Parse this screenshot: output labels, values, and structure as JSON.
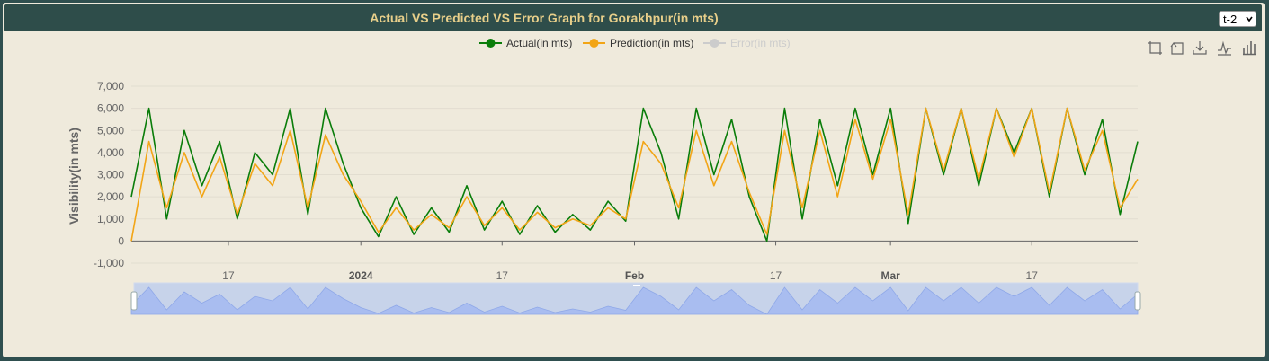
{
  "header": {
    "title": "Actual VS Predicted VS Error Graph for Gorakhpur(in mts)",
    "select_value": "t-2"
  },
  "toolbox": {
    "icons": [
      "zoom-icon",
      "zoom-reset-icon",
      "save-image-icon",
      "line-chart-icon",
      "bar-chart-icon"
    ]
  },
  "chart_data": {
    "type": "line",
    "ylabel": "Visibility(in mts)",
    "ylim": [
      -1000,
      7000
    ],
    "yticks": [
      -1000,
      0,
      1000,
      2000,
      3000,
      4000,
      5000,
      6000,
      7000
    ],
    "ytick_labels": [
      "-1,000",
      "0",
      "1,000",
      "2,000",
      "3,000",
      "4,000",
      "5,000",
      "6,000",
      "7,000"
    ],
    "xlim": [
      "2023-12-06",
      "2024-03-29"
    ],
    "xticks": [
      {
        "date": "2023-12-17",
        "label": "17",
        "bold": false
      },
      {
        "date": "2024-01-01",
        "label": "2024",
        "bold": true
      },
      {
        "date": "2024-01-17",
        "label": "17",
        "bold": false
      },
      {
        "date": "2024-02-01",
        "label": "Feb",
        "bold": true
      },
      {
        "date": "2024-02-17",
        "label": "17",
        "bold": false
      },
      {
        "date": "2024-03-01",
        "label": "Mar",
        "bold": true
      },
      {
        "date": "2024-03-17",
        "label": "17",
        "bold": false
      }
    ],
    "legend": {
      "placement": "top-center",
      "entries": [
        {
          "name": "Actual(in mts)",
          "color": "#0a7d0a",
          "active": true
        },
        {
          "name": "Prediction(in mts)",
          "color": "#f2a516",
          "active": true
        },
        {
          "name": "Error(in mts)",
          "color": "#cccccc",
          "active": false
        }
      ]
    },
    "grid": true,
    "series": [
      {
        "name": "Actual(in mts)",
        "color": "#0a7d0a",
        "x": [
          "2023-12-06",
          "2023-12-08",
          "2023-12-10",
          "2023-12-12",
          "2023-12-14",
          "2023-12-16",
          "2023-12-18",
          "2023-12-20",
          "2023-12-22",
          "2023-12-24",
          "2023-12-26",
          "2023-12-28",
          "2023-12-30",
          "2024-01-01",
          "2024-01-03",
          "2024-01-05",
          "2024-01-07",
          "2024-01-09",
          "2024-01-11",
          "2024-01-13",
          "2024-01-15",
          "2024-01-17",
          "2024-01-19",
          "2024-01-21",
          "2024-01-23",
          "2024-01-25",
          "2024-01-27",
          "2024-01-29",
          "2024-01-31",
          "2024-02-02",
          "2024-02-04",
          "2024-02-06",
          "2024-02-08",
          "2024-02-10",
          "2024-02-12",
          "2024-02-14",
          "2024-02-16",
          "2024-02-18",
          "2024-02-20",
          "2024-02-22",
          "2024-02-24",
          "2024-02-26",
          "2024-02-28",
          "2024-03-01",
          "2024-03-03",
          "2024-03-05",
          "2024-03-07",
          "2024-03-09",
          "2024-03-11",
          "2024-03-13",
          "2024-03-15",
          "2024-03-17",
          "2024-03-19",
          "2024-03-21",
          "2024-03-23",
          "2024-03-25",
          "2024-03-27",
          "2024-03-29"
        ],
        "values": [
          2000,
          6000,
          1000,
          5000,
          2500,
          4500,
          1000,
          4000,
          3000,
          6000,
          1200,
          6000,
          3500,
          1500,
          200,
          2000,
          300,
          1500,
          400,
          2500,
          500,
          1800,
          300,
          1600,
          400,
          1200,
          500,
          1800,
          900,
          6000,
          4000,
          1000,
          6000,
          3000,
          5500,
          2000,
          0,
          6000,
          1000,
          5500,
          2500,
          6000,
          3000,
          6000,
          800,
          6000,
          3000,
          6000,
          2500,
          6000,
          4000,
          6000,
          2000,
          6000,
          3000,
          5500,
          1200,
          4500
        ]
      },
      {
        "name": "Prediction(in mts)",
        "color": "#f2a516",
        "x": [
          "2023-12-06",
          "2023-12-08",
          "2023-12-10",
          "2023-12-12",
          "2023-12-14",
          "2023-12-16",
          "2023-12-18",
          "2023-12-20",
          "2023-12-22",
          "2023-12-24",
          "2023-12-26",
          "2023-12-28",
          "2023-12-30",
          "2024-01-01",
          "2024-01-03",
          "2024-01-05",
          "2024-01-07",
          "2024-01-09",
          "2024-01-11",
          "2024-01-13",
          "2024-01-15",
          "2024-01-17",
          "2024-01-19",
          "2024-01-21",
          "2024-01-23",
          "2024-01-25",
          "2024-01-27",
          "2024-01-29",
          "2024-01-31",
          "2024-02-02",
          "2024-02-04",
          "2024-02-06",
          "2024-02-08",
          "2024-02-10",
          "2024-02-12",
          "2024-02-14",
          "2024-02-16",
          "2024-02-18",
          "2024-02-20",
          "2024-02-22",
          "2024-02-24",
          "2024-02-26",
          "2024-02-28",
          "2024-03-01",
          "2024-03-03",
          "2024-03-05",
          "2024-03-07",
          "2024-03-09",
          "2024-03-11",
          "2024-03-13",
          "2024-03-15",
          "2024-03-17",
          "2024-03-19",
          "2024-03-21",
          "2024-03-23",
          "2024-03-25",
          "2024-03-27",
          "2024-03-29"
        ],
        "values": [
          0,
          4500,
          1500,
          4000,
          2000,
          3800,
          1200,
          3500,
          2500,
          5000,
          1500,
          4800,
          3000,
          1800,
          400,
          1500,
          500,
          1200,
          600,
          2000,
          700,
          1500,
          500,
          1300,
          600,
          1000,
          700,
          1500,
          1000,
          4500,
          3500,
          1500,
          5000,
          2500,
          4500,
          2200,
          300,
          5000,
          1500,
          5000,
          2000,
          5500,
          2800,
          5500,
          1200,
          6000,
          3200,
          6000,
          2800,
          6000,
          3800,
          6000,
          2200,
          6000,
          3200,
          5000,
          1500,
          2800
        ]
      }
    ],
    "datazoom": {
      "start_date": "2023-12-06",
      "end_date": "2024-03-29"
    }
  }
}
